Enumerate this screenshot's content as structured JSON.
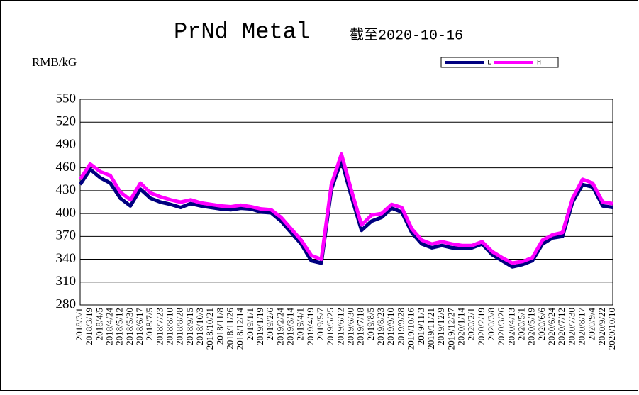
{
  "chart_data": {
    "type": "line",
    "title": "PrNd Metal",
    "subtitle": "截至2020-10-16",
    "y_label": "RMB/kG",
    "categories": [
      "2018/3/1",
      "2018/3/19",
      "2018/4/5",
      "2018/4/24",
      "2018/5/12",
      "2018/5/30",
      "2018/6/17",
      "2018/7/5",
      "2018/7/23",
      "2018/8/10",
      "2018/8/28",
      "2018/9/15",
      "2018/10/3",
      "2018/10/21",
      "2018/11/8",
      "2018/11/26",
      "2018/12/14",
      "2019/1/1",
      "2019/1/19",
      "2019/2/6",
      "2019/2/24",
      "2019/3/14",
      "2019/4/1",
      "2019/4/19",
      "2019/5/7",
      "2019/5/25",
      "2019/6/12",
      "2019/6/30",
      "2019/7/18",
      "2019/8/5",
      "2019/8/23",
      "2019/9/10",
      "2019/9/28",
      "2019/10/16",
      "2019/11/3",
      "2019/11/21",
      "2019/12/9",
      "2019/12/27",
      "2020/1/14",
      "2020/2/1",
      "2020/2/19",
      "2020/3/8",
      "2020/3/26",
      "2020/4/13",
      "2020/5/1",
      "2020/5/19",
      "2020/6/6",
      "2020/6/24",
      "2020/7/12",
      "2020/7/30",
      "2020/8/17",
      "2020/9/4",
      "2020/9/22",
      "2020/10/10"
    ],
    "series": [
      {
        "name": "L",
        "color": "#000080",
        "values": [
          438,
          458,
          447,
          440,
          420,
          410,
          432,
          420,
          415,
          412,
          408,
          413,
          410,
          408,
          406,
          405,
          407,
          406,
          402,
          401,
          390,
          375,
          360,
          338,
          335,
          432,
          470,
          422,
          378,
          390,
          395,
          407,
          402,
          375,
          360,
          355,
          358,
          355,
          355,
          355,
          360,
          346,
          338,
          330,
          333,
          338,
          360,
          368,
          370,
          415,
          438,
          435,
          410,
          408
        ]
      },
      {
        "name": "H",
        "color": "#ff00ff",
        "values": [
          445,
          465,
          455,
          450,
          428,
          418,
          440,
          427,
          422,
          418,
          415,
          418,
          414,
          412,
          410,
          409,
          411,
          409,
          406,
          405,
          395,
          380,
          365,
          345,
          340,
          438,
          478,
          430,
          385,
          398,
          400,
          412,
          408,
          380,
          365,
          360,
          363,
          360,
          358,
          358,
          363,
          350,
          342,
          335,
          337,
          342,
          365,
          372,
          375,
          420,
          445,
          440,
          415,
          413
        ]
      }
    ],
    "ylim": [
      280,
      550
    ],
    "yticks": [
      280,
      310,
      340,
      370,
      400,
      430,
      460,
      490,
      520,
      550
    ]
  }
}
